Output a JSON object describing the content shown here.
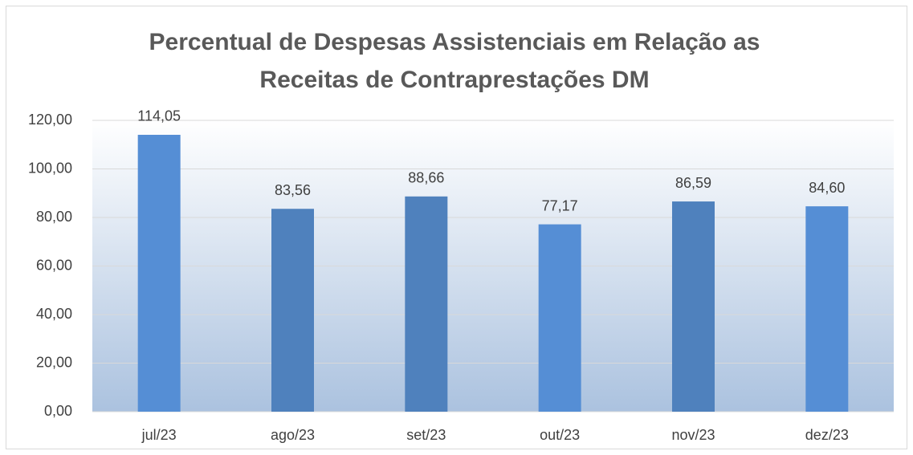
{
  "chart_data": {
    "type": "bar",
    "title": [
      "Percentual de Despesas Assistenciais em Relação as",
      "Receitas de Contraprestações DM"
    ],
    "categories": [
      "jul/23",
      "ago/23",
      "set/23",
      "out/23",
      "nov/23",
      "dez/23"
    ],
    "values": [
      114.05,
      83.56,
      88.66,
      77.17,
      86.59,
      84.6
    ],
    "value_labels": [
      "114,05",
      "83,56",
      "88,66",
      "77,17",
      "86,59",
      "84,60"
    ],
    "colors": [
      "#558ed5",
      "#4f81bd",
      "#4f81bd",
      "#558ed5",
      "#4f81bd",
      "#558ed5"
    ],
    "ylim": [
      0,
      120
    ],
    "yticks": [
      {
        "value": 0,
        "label": "0,00"
      },
      {
        "value": 20,
        "label": "20,00"
      },
      {
        "value": 40,
        "label": "40,00"
      },
      {
        "value": 60,
        "label": "60,00"
      },
      {
        "value": 80,
        "label": "80,00"
      },
      {
        "value": 100,
        "label": "100,00"
      },
      {
        "value": 120,
        "label": "120,00"
      }
    ],
    "grid": true
  }
}
